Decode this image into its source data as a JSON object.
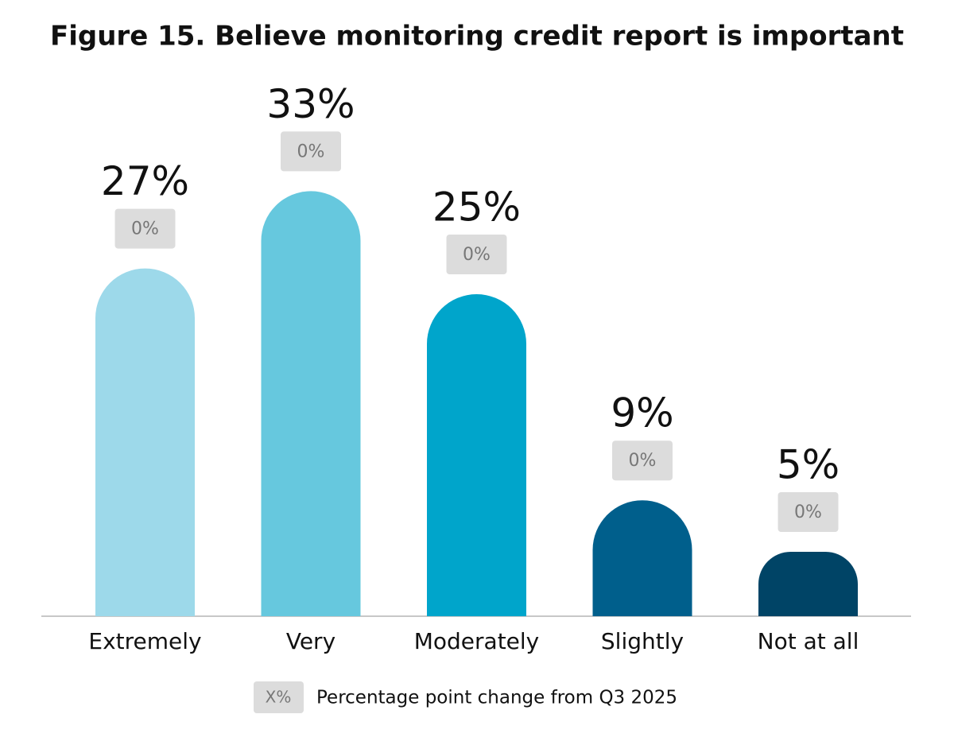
{
  "chart_data": {
    "type": "bar",
    "title": "Figure 15. Believe monitoring credit report is important",
    "categories": [
      "Extremely",
      "Very",
      "Moderately",
      "Slightly",
      "Not at all"
    ],
    "values": [
      27,
      33,
      25,
      9,
      5
    ],
    "value_labels": [
      "27%",
      "33%",
      "25%",
      "9%",
      "5%"
    ],
    "colors": [
      "#9dd9ea",
      "#66c8de",
      "#00a5cb",
      "#005f8c",
      "#004466"
    ],
    "changes": [
      0,
      0,
      0,
      0,
      0
    ],
    "change_labels": [
      "0%",
      "0%",
      "0%",
      "0%",
      "0%"
    ],
    "legend": {
      "badge": "X%",
      "label": "Percentage point change from Q3 2025"
    }
  }
}
